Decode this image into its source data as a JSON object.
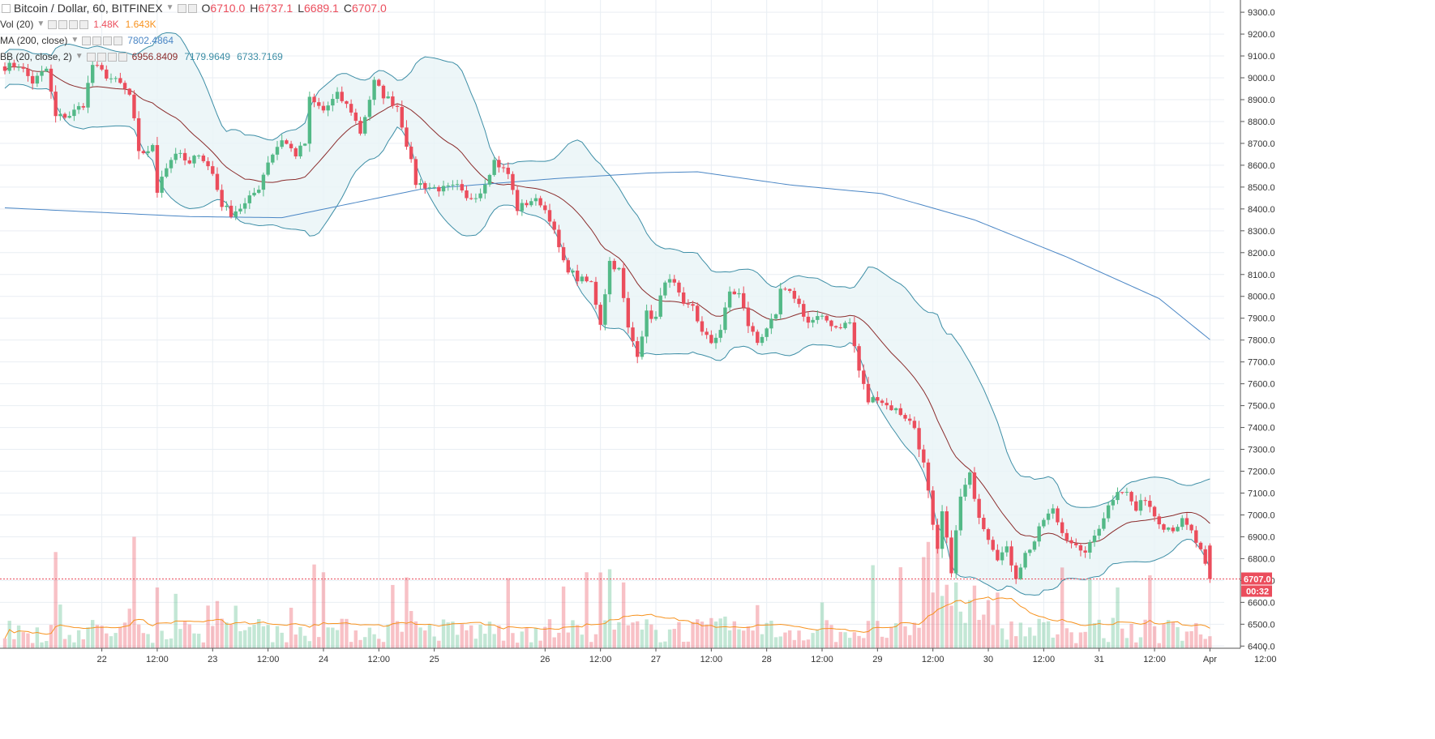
{
  "header": {
    "symbol": "Bitcoin / Dollar, 60, BITFINEX",
    "open_label": "O",
    "open": "6710.0",
    "high_label": "H",
    "high": "6737.1",
    "low_label": "L",
    "low": "6689.1",
    "close_label": "C",
    "close": "6707.0"
  },
  "indicators": {
    "vol": {
      "label": "Vol (20)",
      "v1": "1.48K",
      "v2": "1.643K"
    },
    "ma": {
      "label": "MA (200, close)",
      "v1": "7802.4864"
    },
    "bb": {
      "label": "BB (20, close, 2)",
      "v1": "6956.8409",
      "v2": "7179.9649",
      "v3": "6733.7169"
    }
  },
  "price_tag": {
    "value": "6707.0",
    "countdown": "00:32"
  },
  "colors": {
    "up": "#53b987",
    "down": "#eb4d5c",
    "bb_band": "#3d8ea6",
    "bb_basis": "#8b2c2c",
    "ma": "#4a86c5",
    "vol_ma": "#f7921e",
    "bb_fill": "#e8f4f6",
    "grid": "#e9eef3"
  },
  "chart_data": {
    "type": "candlestick",
    "interval": "60",
    "exchange": "BITFINEX",
    "ylim": [
      6390,
      9330
    ],
    "y_ticks": [
      6400,
      6500,
      6600,
      6700,
      6800,
      6900,
      7000,
      7100,
      7200,
      7300,
      7400,
      7500,
      7600,
      7700,
      7800,
      7900,
      8000,
      8100,
      8200,
      8300,
      8400,
      8500,
      8600,
      8700,
      8800,
      8900,
      9000,
      9100,
      9200,
      9300
    ],
    "x_ticks": [
      {
        "label": "22",
        "hour": 21.5
      },
      {
        "label": "12:00",
        "hour": 33.5
      },
      {
        "label": "23",
        "hour": 45.5
      },
      {
        "label": "12:00",
        "hour": 57.5
      },
      {
        "label": "24",
        "hour": 69.5
      },
      {
        "label": "12:00",
        "hour": 81.5
      },
      {
        "label": "25",
        "hour": 93.5
      },
      {
        "label": "26",
        "hour": 117.5
      },
      {
        "label": "12:00",
        "hour": 129.5
      },
      {
        "label": "27",
        "hour": 141.5
      },
      {
        "label": "12:00",
        "hour": 153.5
      },
      {
        "label": "28",
        "hour": 165.5
      },
      {
        "label": "12:00",
        "hour": 177.5
      },
      {
        "label": "29",
        "hour": 189.5
      },
      {
        "label": "12:00",
        "hour": 201.5
      },
      {
        "label": "30",
        "hour": 213.5
      },
      {
        "label": "12:00",
        "hour": 225.5
      },
      {
        "label": "31",
        "hour": 237.5
      },
      {
        "label": "12:00",
        "hour": 249.5
      },
      {
        "label": "Apr",
        "hour": 261.5
      },
      {
        "label": "12:00",
        "hour": 273.5
      }
    ],
    "close_anchors": [
      [
        0,
        9050
      ],
      [
        3,
        9060
      ],
      [
        6,
        8980
      ],
      [
        9,
        9040
      ],
      [
        11,
        8820
      ],
      [
        14,
        8830
      ],
      [
        17,
        8880
      ],
      [
        19,
        9060
      ],
      [
        22,
        9010
      ],
      [
        25,
        8970
      ],
      [
        27,
        8920
      ],
      [
        28,
        8800
      ],
      [
        29,
        8650
      ],
      [
        32,
        8680
      ],
      [
        33,
        8480
      ],
      [
        34,
        8560
      ],
      [
        37,
        8660
      ],
      [
        40,
        8600
      ],
      [
        42,
        8660
      ],
      [
        45,
        8560
      ],
      [
        47,
        8420
      ],
      [
        49,
        8380
      ],
      [
        52,
        8420
      ],
      [
        55,
        8500
      ],
      [
        57,
        8620
      ],
      [
        60,
        8720
      ],
      [
        63,
        8650
      ],
      [
        65,
        8700
      ],
      [
        66,
        8900
      ],
      [
        69,
        8850
      ],
      [
        72,
        8920
      ],
      [
        75,
        8850
      ],
      [
        77,
        8750
      ],
      [
        80,
        8980
      ],
      [
        82,
        8920
      ],
      [
        85,
        8870
      ],
      [
        87,
        8700
      ],
      [
        89,
        8520
      ],
      [
        92,
        8500
      ],
      [
        95,
        8490
      ],
      [
        98,
        8500
      ],
      [
        100,
        8440
      ],
      [
        103,
        8480
      ],
      [
        106,
        8620
      ],
      [
        109,
        8560
      ],
      [
        111,
        8400
      ],
      [
        114,
        8440
      ],
      [
        116,
        8430
      ],
      [
        118,
        8360
      ],
      [
        121,
        8150
      ],
      [
        124,
        8080
      ],
      [
        127,
        8060
      ],
      [
        129,
        7880
      ],
      [
        131,
        8160
      ],
      [
        133,
        8120
      ],
      [
        135,
        7850
      ],
      [
        137,
        7740
      ],
      [
        139,
        7920
      ],
      [
        141,
        7900
      ],
      [
        143,
        8080
      ],
      [
        145,
        8050
      ],
      [
        147,
        7950
      ],
      [
        149,
        7960
      ],
      [
        151,
        7830
      ],
      [
        153,
        7790
      ],
      [
        155,
        7850
      ],
      [
        157,
        8020
      ],
      [
        159,
        8010
      ],
      [
        161,
        7870
      ],
      [
        163,
        7790
      ],
      [
        165,
        7860
      ],
      [
        167,
        7900
      ],
      [
        168,
        8030
      ],
      [
        171,
        8000
      ],
      [
        174,
        7880
      ],
      [
        176,
        7900
      ],
      [
        178,
        7890
      ],
      [
        180,
        7860
      ],
      [
        183,
        7880
      ],
      [
        185,
        7660
      ],
      [
        187,
        7520
      ],
      [
        189,
        7540
      ],
      [
        191,
        7500
      ],
      [
        193,
        7480
      ],
      [
        195,
        7450
      ],
      [
        197,
        7400
      ],
      [
        199,
        7230
      ],
      [
        200,
        7100
      ],
      [
        201,
        6940
      ],
      [
        202,
        6830
      ],
      [
        203,
        7010
      ],
      [
        204,
        6880
      ],
      [
        205,
        6750
      ],
      [
        206,
        6920
      ],
      [
        207,
        7080
      ],
      [
        209,
        7180
      ],
      [
        211,
        7000
      ],
      [
        213,
        6900
      ],
      [
        215,
        6810
      ],
      [
        217,
        6840
      ],
      [
        219,
        6720
      ],
      [
        221,
        6820
      ],
      [
        223,
        6880
      ],
      [
        225,
        6980
      ],
      [
        227,
        7020
      ],
      [
        229,
        6920
      ],
      [
        231,
        6880
      ],
      [
        233,
        6820
      ],
      [
        235,
        6860
      ],
      [
        237,
        6950
      ],
      [
        239,
        7040
      ],
      [
        241,
        7120
      ],
      [
        243,
        7100
      ],
      [
        245,
        7020
      ],
      [
        247,
        7080
      ],
      [
        249,
        7000
      ],
      [
        251,
        6950
      ],
      [
        253,
        6940
      ],
      [
        255,
        6970
      ],
      [
        257,
        6920
      ],
      [
        259,
        6830
      ],
      [
        260,
        6760
      ],
      [
        261,
        6707
      ]
    ],
    "series": [
      {
        "name": "Vol (20)",
        "last": "1.48K"
      },
      {
        "name": "MA (200, close)",
        "last": 7802.4864
      },
      {
        "name": "BB (20, close, 2)",
        "basis": 6956.8409,
        "upper": 7179.9649,
        "lower": 6733.7169
      }
    ]
  }
}
